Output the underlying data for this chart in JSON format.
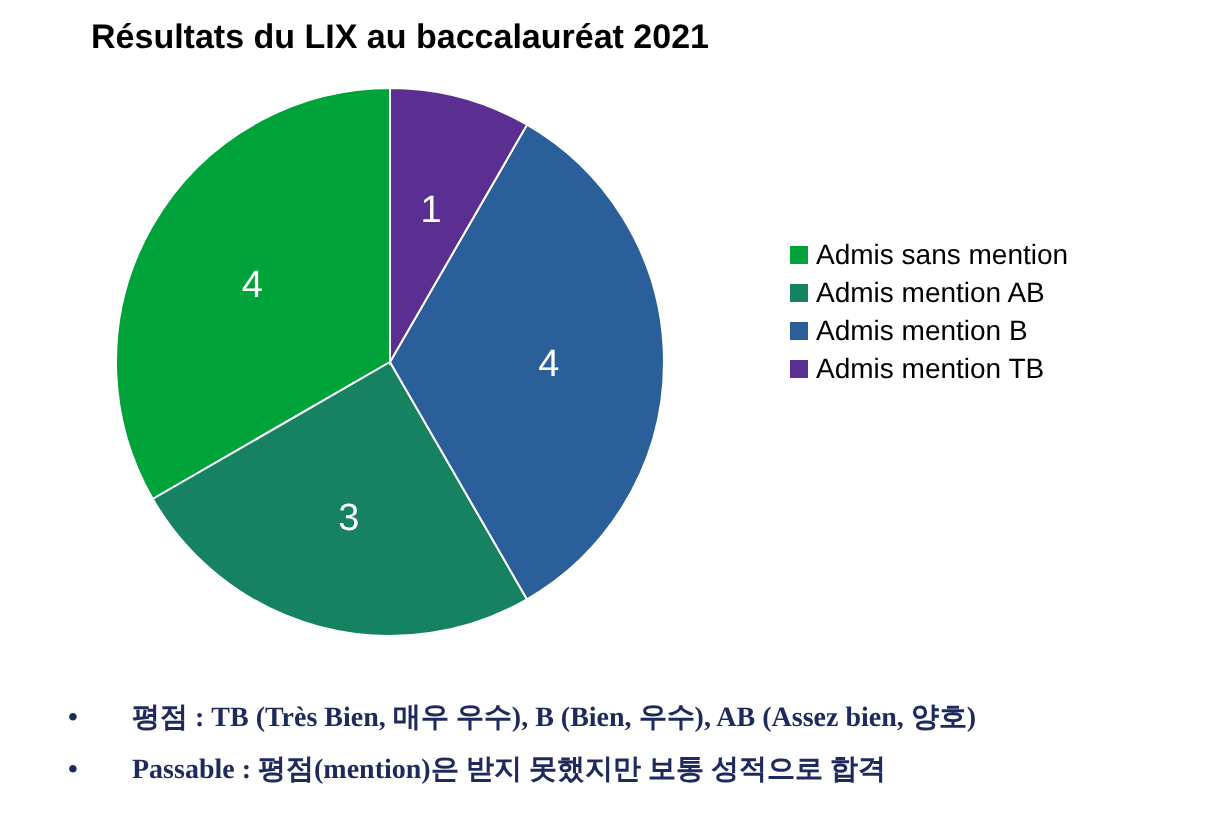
{
  "chart_data": {
    "type": "pie",
    "title": "Résultats du LIX au baccalauréat 2021",
    "categories": [
      "Admis sans mention",
      "Admis mention AB",
      "Admis mention B",
      "Admis mention TB"
    ],
    "values": [
      4,
      3,
      4,
      1
    ],
    "colors": [
      "#00a33a",
      "#178262",
      "#2a5f99",
      "#5b2f91"
    ],
    "data_labels": true,
    "legend": "right",
    "annotations": [
      "• 평점 : TB (Très Bien, 매우 우수), B (Bien, 우수), AB (Assez bien, 양호)",
      "• Passable : 평점(mention)은 받지 못했지만 보통 성적으로 합격"
    ]
  }
}
